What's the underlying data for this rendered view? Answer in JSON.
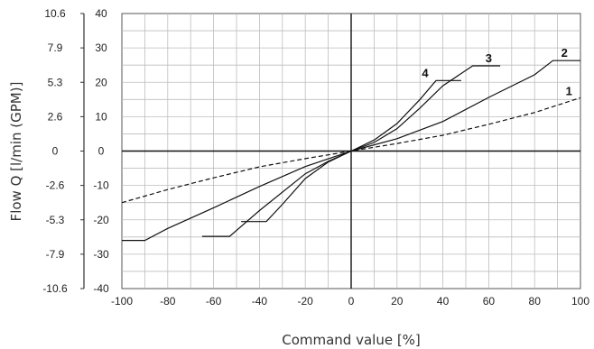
{
  "chart_data": {
    "type": "line",
    "xlabel": "Command value [%]",
    "ylabel": "Flow Q [l/min (GPM)]",
    "xlim": [
      -100,
      100
    ],
    "ylim": [
      -40,
      40
    ],
    "x_ticks": [
      "-100",
      "-80",
      "-60",
      "-40",
      "-20",
      "0",
      "20",
      "40",
      "60",
      "80",
      "100"
    ],
    "y_ticks_lpm": [
      "40",
      "30",
      "20",
      "10",
      "0",
      "-10",
      "-20",
      "-30",
      "-40"
    ],
    "y_ticks_gpm": [
      "10.6",
      "7.9",
      "5.3",
      "2.6",
      "0",
      "-2.6",
      "-5.3",
      "-7.9",
      "-10.6"
    ],
    "grid": true,
    "series": [
      {
        "name": "1",
        "dashed": true,
        "points": [
          [
            -100,
            -15
          ],
          [
            -80,
            -11.2
          ],
          [
            -60,
            -7.8
          ],
          [
            -40,
            -4.6
          ],
          [
            -20,
            -2.2
          ],
          [
            0,
            0
          ],
          [
            20,
            2.2
          ],
          [
            40,
            4.6
          ],
          [
            60,
            7.8
          ],
          [
            80,
            11.2
          ],
          [
            100,
            15.5
          ]
        ]
      },
      {
        "name": "2",
        "dashed": false,
        "points": [
          [
            -100,
            -26
          ],
          [
            -90,
            -26
          ],
          [
            -80,
            -22.5
          ],
          [
            -60,
            -16.5
          ],
          [
            -40,
            -10.3
          ],
          [
            -20,
            -4.5
          ],
          [
            0,
            0
          ],
          [
            20,
            3.6
          ],
          [
            40,
            8.6
          ],
          [
            60,
            15.6
          ],
          [
            80,
            22.2
          ],
          [
            88,
            26.3
          ],
          [
            100,
            26.3
          ]
        ]
      },
      {
        "name": "3",
        "dashed": false,
        "points": [
          [
            -65,
            -24.8
          ],
          [
            -53,
            -24.8
          ],
          [
            -40,
            -17.3
          ],
          [
            -20,
            -6.6
          ],
          [
            -10,
            -3
          ],
          [
            0,
            0
          ],
          [
            10,
            2.5
          ],
          [
            20,
            6.5
          ],
          [
            30,
            12.5
          ],
          [
            40,
            19
          ],
          [
            53,
            24.8
          ],
          [
            65,
            24.8
          ]
        ]
      },
      {
        "name": "4",
        "dashed": false,
        "points": [
          [
            -48,
            -20.5
          ],
          [
            -37,
            -20.5
          ],
          [
            -30,
            -15.5
          ],
          [
            -20,
            -8
          ],
          [
            -10,
            -3.2
          ],
          [
            0,
            0
          ],
          [
            10,
            3.2
          ],
          [
            20,
            8
          ],
          [
            30,
            15
          ],
          [
            37,
            20.5
          ],
          [
            48,
            20.5
          ]
        ]
      }
    ]
  }
}
